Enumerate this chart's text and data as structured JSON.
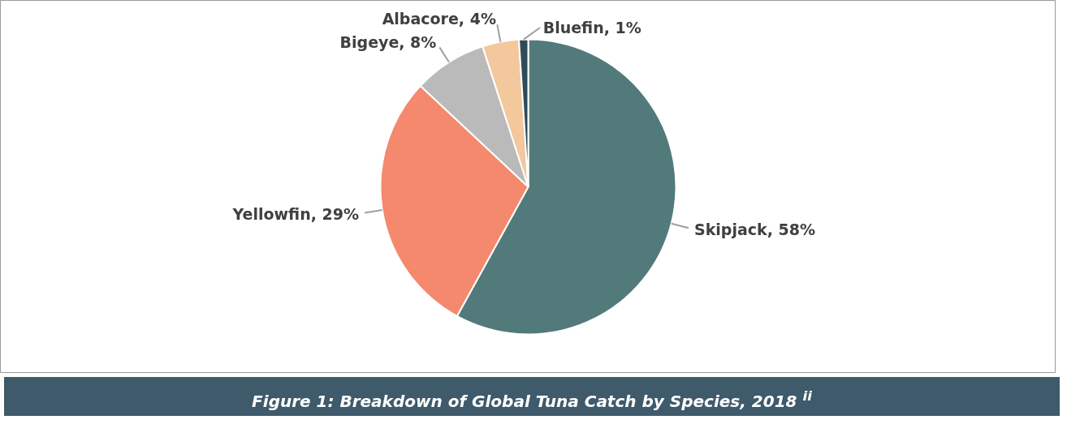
{
  "chart_data": {
    "type": "pie",
    "title": "Figure 1: Breakdown of Global Tuna Catch by Species, 2018 $^{ii}$",
    "categories": [
      "Skipjack",
      "Yellowfin",
      "Bigeye",
      "Albacore",
      "Bluefin"
    ],
    "values": [
      58,
      29,
      8,
      4,
      1
    ],
    "value_labels": [
      "58%",
      "29%",
      "8%",
      "4%",
      "1%"
    ],
    "colors": [
      "#527a7b",
      "#f4896d",
      "#bababa",
      "#f3c89c",
      "#2f4b5a"
    ]
  }
}
